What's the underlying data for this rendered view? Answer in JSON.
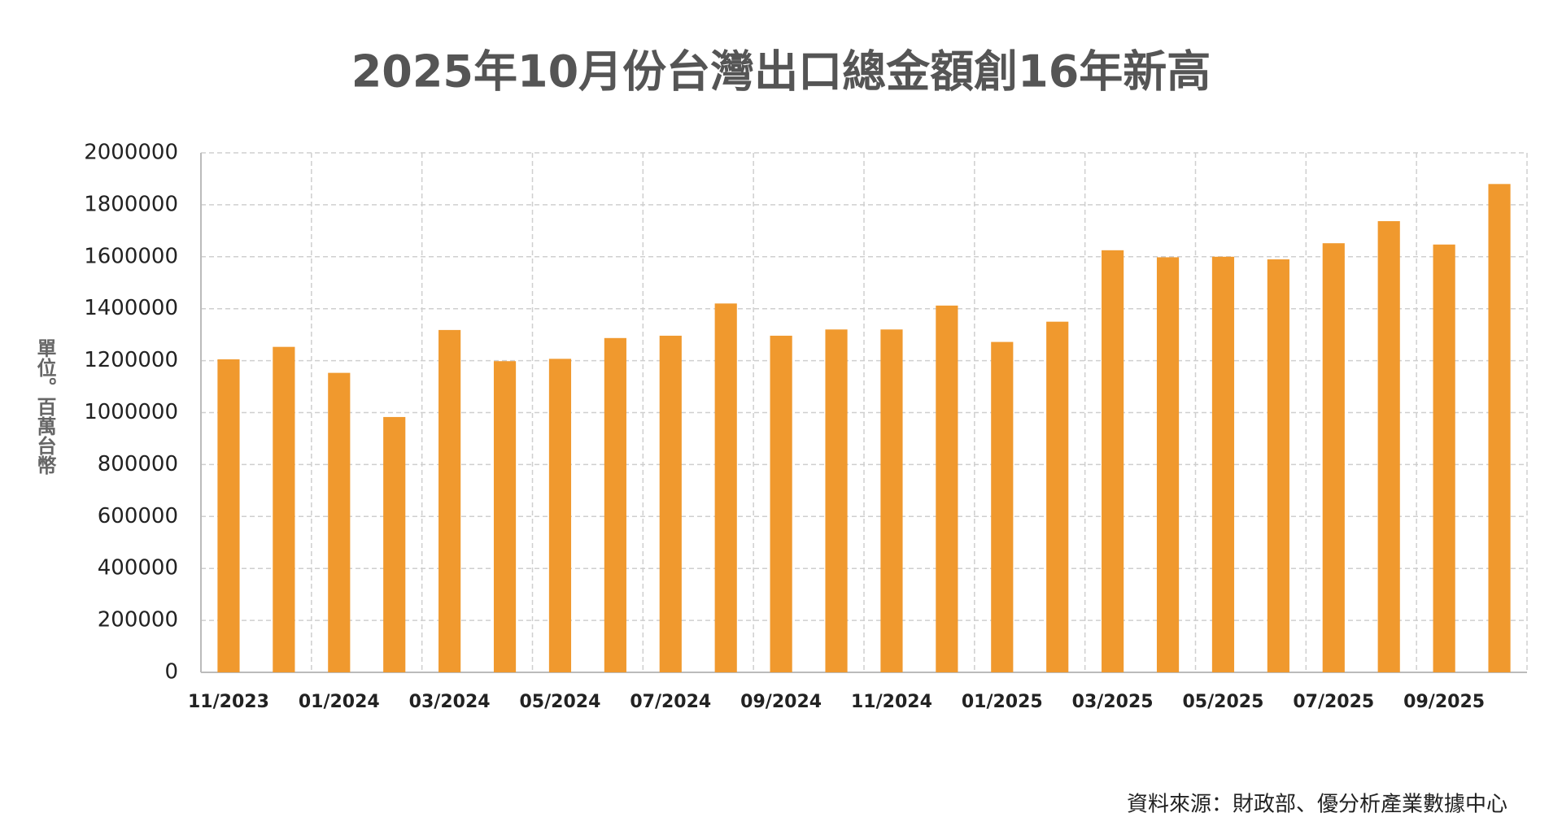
{
  "chart_data": {
    "type": "bar",
    "title": "2025年10月份台灣出口總金額創16年新高",
    "y_label": "單位。百萬台幣",
    "source": "資料來源：財政部、優分析產業數據中心",
    "categories": [
      "11/2023",
      null,
      "01/2024",
      null,
      "03/2024",
      null,
      "05/2024",
      null,
      "07/2024",
      null,
      "09/2024",
      null,
      "11/2024",
      null,
      "01/2025",
      null,
      "03/2025",
      null,
      "05/2025",
      null,
      "07/2025",
      null,
      "09/2025",
      null
    ],
    "values": [
      1205000,
      1253000,
      1153000,
      983000,
      1318000,
      1198000,
      1207000,
      1287000,
      1296000,
      1420000,
      1296000,
      1320000,
      1320000,
      1412000,
      1272000,
      1350000,
      1625000,
      1598000,
      1600000,
      1590000,
      1652000,
      1737000,
      1647000,
      1880000
    ],
    "color": "#f0992e",
    "ylim": [
      0,
      2000000
    ],
    "yticks": [
      0,
      200000,
      400000,
      600000,
      800000,
      1000000,
      1200000,
      1400000,
      1600000,
      1800000,
      2000000
    ],
    "grid": true
  }
}
